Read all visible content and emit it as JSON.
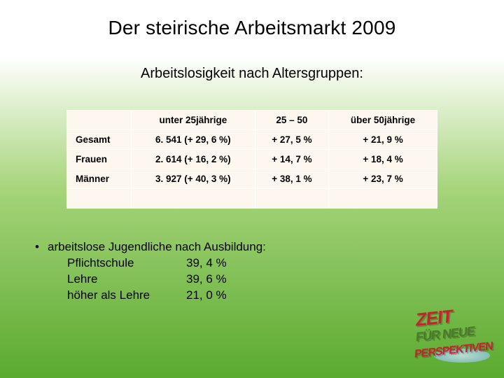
{
  "title": "Der steirische Arbeitsmarkt 2009",
  "subtitle": "Arbeitslosigkeit nach Altersgruppen:",
  "table": {
    "background_color": "#fdf7ef",
    "border_color": "#ffffff",
    "font_size": 13.5,
    "columns": [
      "",
      "unter 25jährige",
      "25 – 50",
      "über 50jährige"
    ],
    "rows": [
      {
        "label": "Gesamt",
        "cells": [
          "6. 541 (+ 29, 6 %)",
          "+ 27, 5 %",
          "+ 21, 9 %"
        ]
      },
      {
        "label": "Frauen",
        "cells": [
          "2. 614 (+ 16, 2 %)",
          "+ 14, 7 %",
          "+ 18, 4 %"
        ]
      },
      {
        "label": "Männer",
        "cells": [
          "3. 927 (+ 40, 3 %)",
          "+ 38, 1 %",
          "+ 23, 7 %"
        ]
      }
    ]
  },
  "bullet": {
    "intro": "arbeitslose Jugendliche nach Ausbildung:",
    "lines": [
      {
        "label": "Pflichtschule",
        "value": "39, 4 %"
      },
      {
        "label": "Lehre",
        "value": "39, 6 %"
      },
      {
        "label": "höher als Lehre",
        "value": "21, 0 %"
      }
    ]
  },
  "logo": {
    "line1": "ZEIT",
    "line2": "FÜR NEUE",
    "line3": "PERSPEKTIVEN"
  },
  "colors": {
    "bg_top": "#ffffff",
    "bg_mid": "#a6d47a",
    "bg_bottom": "#5aaa2f",
    "text": "#000000",
    "logo_red": "#c8202f",
    "logo_green": "#4a7a2a"
  }
}
